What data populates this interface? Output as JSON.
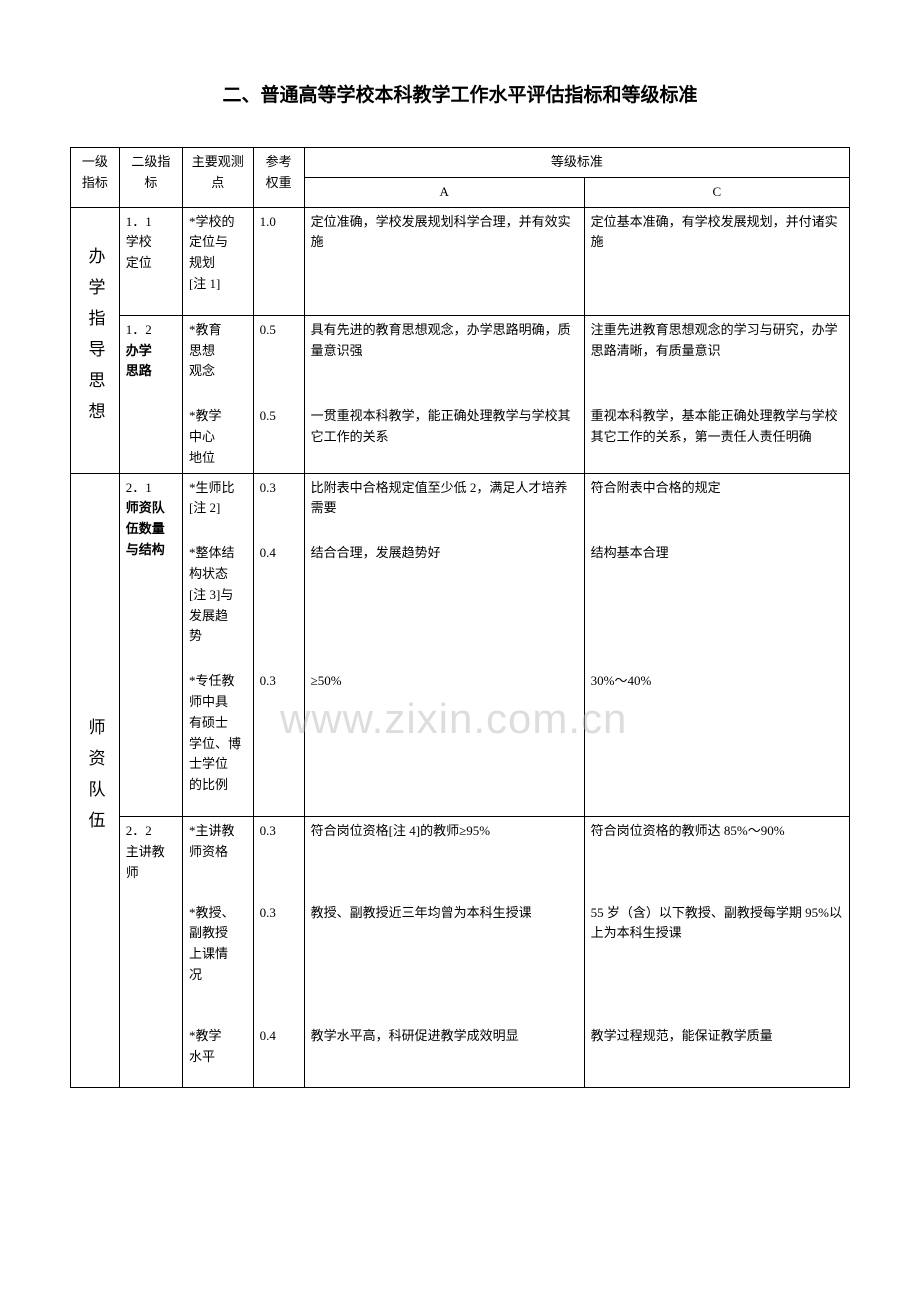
{
  "title": "二、普通高等学校本科教学工作水平评估指标和等级标准",
  "watermark": "www.zixin.com.cn",
  "header": {
    "c1": "一级指标",
    "c2": "二级指标",
    "c3": "主要观测点",
    "c4": "参考权重",
    "grade_label": "等级标准",
    "gA": "A",
    "gC": "C"
  },
  "sec1": {
    "label": "办学指导思想",
    "r11": {
      "idx": "1．1",
      "name1": "学校",
      "name2": "定位",
      "obs1": "*学校的",
      "obs2": "定位与",
      "obs3": "规划",
      "obs4": "[注 1]",
      "w": "1.0",
      "a": "定位准确，学校发展规划科学合理，并有效实施",
      "c": "定位基本准确，有学校发展规划，并付诸实施"
    },
    "r12a": {
      "idx": "1．2",
      "name1": "办学",
      "name2": "思路",
      "obs1": "*教育",
      "obs2": "思想",
      "obs3": "观念",
      "w": "0.5",
      "a": "具有先进的教育思想观念，办学思路明确，质量意识强",
      "c": "注重先进教育思想观念的学习与研究，办学思路清晰，有质量意识"
    },
    "r12b": {
      "obs1": "*教学",
      "obs2": "中心",
      "obs3": "地位",
      "w": "0.5",
      "a": "一贯重视本科教学，能正确处理教学与学校其它工作的关系",
      "c": "重视本科教学，基本能正确处理教学与学校其它工作的关系，第一责任人责任明确"
    }
  },
  "sec2": {
    "label": "师资队伍",
    "r21a": {
      "idx": "2．1",
      "name1": "师资队",
      "name2": "伍数量",
      "name3": "与结构",
      "obs1": "*生师比",
      "obs2": "[注 2]",
      "w": "0.3",
      "a": "比附表中合格规定值至少低 2，满足人才培养需要",
      "c": "符合附表中合格的规定"
    },
    "r21b": {
      "obs1": "*整体结",
      "obs2": "构状态",
      "obs3": "[注 3]与",
      "obs4": "发展趋",
      "obs5": "势",
      "w": "0.4",
      "a": "结合合理，发展趋势好",
      "c": "结构基本合理"
    },
    "r21c": {
      "obs1": "*专任教",
      "obs2": "师中具",
      "obs3": "有硕士",
      "obs4": "学位、博",
      "obs5": "士学位",
      "obs6": "的比例",
      "w": "0.3",
      "a": "≥50%",
      "c": "30%～40%"
    },
    "r22a": {
      "idx": "2．2",
      "name1": "主讲教",
      "name2": "师",
      "obs1": "*主讲教",
      "obs2": "师资格",
      "w": "0.3",
      "a": "符合岗位资格[注 4]的教师≥95%",
      "c": "符合岗位资格的教师达 85%～90%"
    },
    "r22b": {
      "obs1": "*教授、",
      "obs2": "副教授",
      "obs3": "上课情",
      "obs4": "况",
      "w": "0.3",
      "a": "教授、副教授近三年均曾为本科生授课",
      "c": "55 岁（含）以下教授、副教授每学期 95%以上为本科生授课"
    },
    "r22c": {
      "obs1": "*教学",
      "obs2": "水平",
      "w": "0.4",
      "a": "教学水平高，科研促进教学成效明显",
      "c": "教学过程规范，能保证教学质量"
    }
  }
}
